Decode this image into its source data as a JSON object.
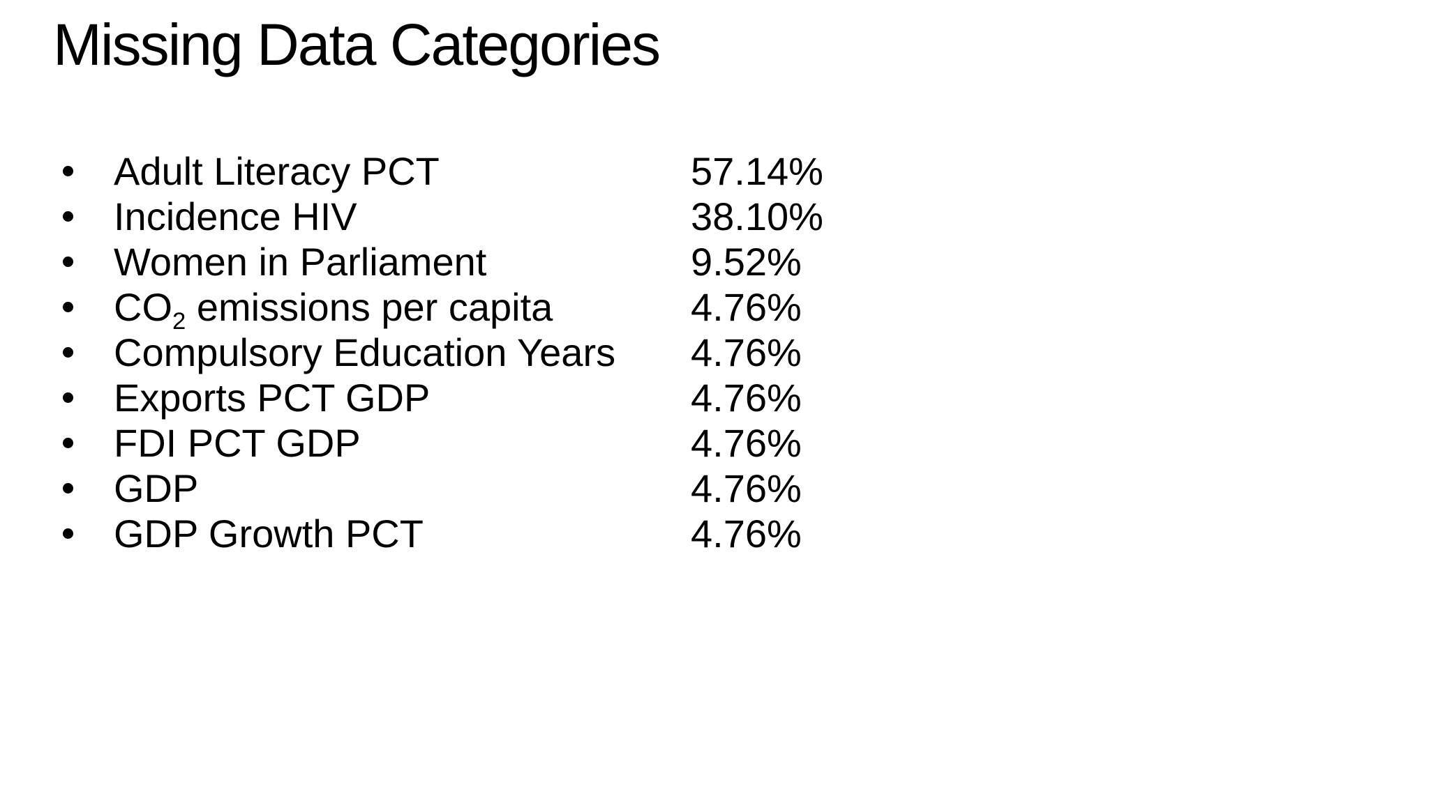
{
  "slide": {
    "title": "Missing Data Categories",
    "colors": {
      "background": "#ffffff",
      "text": "#000000"
    },
    "list": {
      "bullet_glyph": "•",
      "items": [
        {
          "pre": "Adult Literacy PCT",
          "sub": "",
          "post": "",
          "value": "57.14%"
        },
        {
          "pre": "Incidence HIV",
          "sub": "",
          "post": "",
          "value": "38.10%"
        },
        {
          "pre": "Women in Parliament",
          "sub": "",
          "post": "",
          "value": "9.52%"
        },
        {
          "pre": "CO",
          "sub": "2",
          "post": " emissions per capita",
          "value": "4.76%"
        },
        {
          "pre": "Compulsory Education Years",
          "sub": "",
          "post": "",
          "value": "4.76%"
        },
        {
          "pre": "Exports PCT GDP",
          "sub": "",
          "post": "",
          "value": "4.76%"
        },
        {
          "pre": "FDI PCT GDP",
          "sub": "",
          "post": "",
          "value": "4.76%"
        },
        {
          "pre": "GDP",
          "sub": "",
          "post": "",
          "value": "4.76%"
        },
        {
          "pre": "GDP Growth PCT",
          "sub": "",
          "post": "",
          "value": "4.76%"
        }
      ]
    }
  }
}
